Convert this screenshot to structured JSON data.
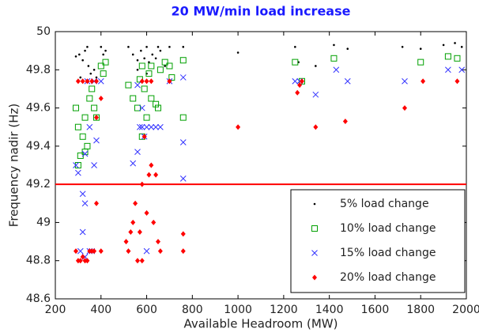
{
  "chart_data": {
    "type": "scatter",
    "title": "20 MW/min load increase",
    "x_label": "Available Headroom (MW)",
    "y_label": "Frequency nadir (Hz)",
    "xlim": [
      200,
      2000
    ],
    "xticks": [
      200,
      400,
      600,
      800,
      1000,
      1200,
      1400,
      1600,
      1800,
      2000
    ],
    "ylim": [
      48.6,
      50
    ],
    "yticks": [
      48.6,
      48.8,
      49,
      49.2,
      49.4,
      49.6,
      49.8,
      50
    ],
    "legend": "lower right",
    "hline": {
      "value": 49.2,
      "color": "#ff0000"
    },
    "series": [
      {
        "name": "5% load change",
        "color": "#000000",
        "marker": "dot",
        "x": [
          290,
          305,
          320,
          330,
          345,
          355,
          370,
          380,
          400,
          410,
          420,
          520,
          540,
          560,
          575,
          590,
          600,
          610,
          625,
          640,
          660,
          680,
          700,
          760,
          1000,
          1250,
          1265,
          1340,
          1420,
          1480,
          1720,
          1800,
          1900,
          1950,
          1980,
          310,
          340,
          560,
          600,
          650
        ],
        "values": [
          49.87,
          49.88,
          49.85,
          49.9,
          49.82,
          49.78,
          49.8,
          49.76,
          49.92,
          49.88,
          49.9,
          49.92,
          49.88,
          49.85,
          49.9,
          49.86,
          49.92,
          49.84,
          49.88,
          49.86,
          49.9,
          49.82,
          49.92,
          49.92,
          49.89,
          49.92,
          49.84,
          49.82,
          49.93,
          49.91,
          49.92,
          49.91,
          49.93,
          49.94,
          49.92,
          49.76,
          49.92,
          49.8,
          49.78,
          49.92
        ]
      },
      {
        "name": "10% load change",
        "color": "#00a000",
        "marker": "square",
        "x": [
          290,
          300,
          310,
          320,
          330,
          340,
          350,
          360,
          370,
          380,
          400,
          410,
          420,
          520,
          540,
          560,
          570,
          580,
          590,
          600,
          610,
          620,
          640,
          650,
          660,
          680,
          700,
          710,
          760,
          760,
          1250,
          1280,
          1420,
          1800,
          1920,
          1960,
          330,
          580,
          620,
          300
        ],
        "values": [
          49.6,
          49.5,
          49.35,
          49.45,
          49.55,
          49.4,
          49.65,
          49.7,
          49.6,
          49.55,
          49.82,
          49.78,
          49.84,
          49.72,
          49.65,
          49.6,
          49.75,
          49.82,
          49.7,
          49.55,
          49.78,
          49.65,
          49.62,
          49.6,
          49.8,
          49.84,
          49.82,
          49.76,
          49.85,
          49.55,
          49.84,
          49.74,
          49.86,
          49.84,
          49.87,
          49.86,
          49.37,
          49.45,
          49.82,
          49.3
        ]
      },
      {
        "name": "15% load change",
        "color": "#3333ff",
        "marker": "x",
        "x": [
          290,
          300,
          320,
          330,
          340,
          350,
          360,
          370,
          380,
          320,
          330,
          400,
          540,
          560,
          570,
          580,
          590,
          600,
          620,
          640,
          660,
          700,
          760,
          760,
          760,
          1250,
          1270,
          1340,
          1430,
          1480,
          1730,
          1920,
          1980,
          310,
          330,
          350,
          600,
          580,
          560,
          370
        ],
        "values": [
          49.3,
          49.26,
          49.15,
          49.1,
          49.74,
          48.85,
          48.85,
          49.3,
          49.43,
          48.95,
          49.36,
          49.74,
          49.31,
          49.37,
          49.5,
          49.5,
          49.45,
          49.5,
          49.5,
          49.5,
          49.5,
          49.74,
          49.76,
          49.42,
          49.23,
          49.74,
          49.74,
          49.67,
          49.8,
          49.74,
          49.74,
          49.8,
          49.8,
          48.85,
          48.82,
          49.5,
          48.85,
          49.6,
          49.72,
          49.74
        ]
      },
      {
        "name": "20% load change",
        "color": "#ff0000",
        "marker": "diamond",
        "x": [
          290,
          300,
          310,
          320,
          330,
          340,
          350,
          360,
          370,
          380,
          400,
          300,
          320,
          340,
          360,
          380,
          400,
          510,
          520,
          530,
          540,
          550,
          560,
          570,
          580,
          590,
          600,
          610,
          620,
          630,
          640,
          650,
          660,
          700,
          760,
          760,
          1000,
          1260,
          1270,
          1280,
          1340,
          1470,
          1730,
          1810,
          1960,
          580,
          600,
          620,
          380,
          580
        ],
        "values": [
          48.85,
          48.8,
          48.8,
          48.82,
          48.8,
          48.8,
          48.85,
          48.85,
          48.85,
          49.1,
          48.85,
          49.74,
          49.74,
          49.74,
          49.74,
          49.74,
          49.65,
          48.9,
          48.85,
          48.95,
          49,
          49.1,
          48.8,
          48.95,
          49.2,
          49.45,
          49.05,
          49.25,
          49.3,
          49,
          49.25,
          48.9,
          48.85,
          49.74,
          48.94,
          48.85,
          49.5,
          49.68,
          49.72,
          49.74,
          49.5,
          49.53,
          49.6,
          49.74,
          49.74,
          49.74,
          49.74,
          49.74,
          49.55,
          48.8
        ]
      }
    ]
  }
}
